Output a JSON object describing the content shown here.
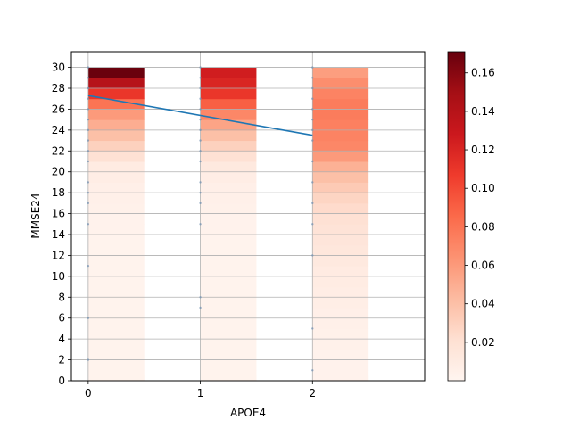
{
  "chart_data": {
    "type": "heatmap",
    "xlabel": "APOE4",
    "ylabel": "MMSE24",
    "x_ticks": [
      "0",
      "1",
      "2"
    ],
    "y_ticks": [
      "0",
      "2",
      "4",
      "6",
      "8",
      "10",
      "12",
      "14",
      "16",
      "18",
      "20",
      "22",
      "24",
      "26",
      "28",
      "30"
    ],
    "xlim": [
      -0.15,
      3.0
    ],
    "ylim": [
      0,
      31.5
    ],
    "grid": true,
    "colormap": "Reds",
    "colorbar": {
      "range": [
        0.0,
        0.171
      ],
      "ticks": [
        "0.02",
        "0.04",
        "0.06",
        "0.08",
        "0.10",
        "0.12",
        "0.14",
        "0.16"
      ]
    },
    "heat_columns": [
      {
        "x": 0,
        "densities": [
          0.002,
          0.002,
          0.002,
          0.002,
          0.002,
          0.002,
          0.002,
          0.002,
          0.002,
          0.002,
          0.002,
          0.002,
          0.002,
          0.002,
          0.002,
          0.003,
          0.003,
          0.004,
          0.005,
          0.006,
          0.008,
          0.01,
          0.02,
          0.03,
          0.04,
          0.05,
          0.06,
          0.08,
          0.11,
          0.14,
          0.17
        ]
      },
      {
        "x": 1,
        "densities": [
          0.002,
          0.002,
          0.002,
          0.002,
          0.002,
          0.002,
          0.002,
          0.002,
          0.002,
          0.002,
          0.002,
          0.002,
          0.002,
          0.002,
          0.002,
          0.003,
          0.003,
          0.004,
          0.005,
          0.006,
          0.008,
          0.012,
          0.02,
          0.03,
          0.04,
          0.055,
          0.07,
          0.09,
          0.11,
          0.12,
          0.125
        ]
      },
      {
        "x": 2,
        "densities": [
          0.002,
          0.003,
          0.003,
          0.003,
          0.004,
          0.004,
          0.005,
          0.006,
          0.007,
          0.008,
          0.009,
          0.01,
          0.012,
          0.014,
          0.016,
          0.018,
          0.02,
          0.024,
          0.028,
          0.034,
          0.04,
          0.048,
          0.06,
          0.07,
          0.072,
          0.074,
          0.076,
          0.076,
          0.072,
          0.066,
          0.058
        ]
      }
    ],
    "regression_line": {
      "x": [
        0,
        2
      ],
      "y": [
        27.3,
        23.5
      ],
      "color": "#1f77b4"
    },
    "points": [
      {
        "x": 0,
        "y": [
          2,
          6,
          11,
          15,
          17,
          18,
          19,
          21,
          22,
          23,
          24,
          25,
          26,
          27,
          28,
          29,
          30
        ]
      },
      {
        "x": 1,
        "y": [
          7,
          8,
          15,
          17,
          18,
          19,
          21,
          22,
          23,
          24,
          25,
          26,
          27,
          28,
          29,
          30
        ]
      },
      {
        "x": 2,
        "y": [
          1,
          5,
          12,
          15,
          17,
          19,
          21,
          23,
          24,
          25,
          26,
          27,
          28,
          29,
          30
        ]
      }
    ]
  }
}
